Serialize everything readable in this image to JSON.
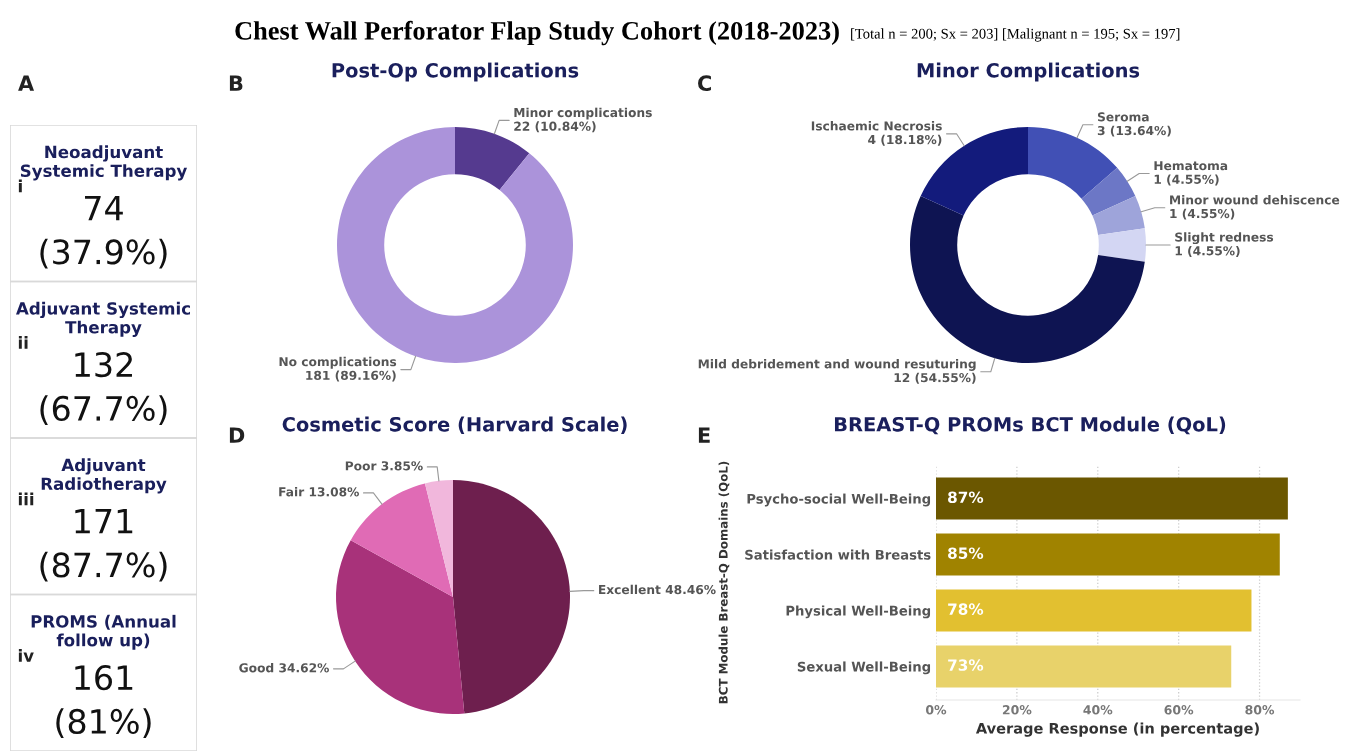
{
  "chart_data": [
    {
      "type": "other",
      "title": "Chest Wall Perforator Flap Study Cohort (2018-2023)",
      "subtitle": "[Total n = 200; Sx = 203] [Malignant n = 195; Sx = 197]",
      "annotations": [
        "A",
        "Neoadjuvant Systemic Therapy",
        "i",
        "74",
        "(37.9%)",
        "Adjuvant Systemic Therapy",
        "ii",
        "132",
        "(67.7%)",
        "Adjuvant Radiotherapy",
        "iii",
        "171",
        "(87.7%)",
        "PROMS (Annual follow up)",
        "iv",
        "161",
        "(81%)"
      ]
    },
    {
      "type": "donut",
      "title": "Post-Op Complications",
      "annotations": [
        "B"
      ],
      "categories": [
        "Minor complications",
        "No complications"
      ],
      "values": [
        22,
        181
      ],
      "value_labels": [
        "22 (10.84%)",
        "181 (89.16%)"
      ],
      "colors": [
        "#553a8f",
        "#ab93da"
      ]
    },
    {
      "type": "donut",
      "title": "Minor Complications",
      "annotations": [
        "C"
      ],
      "categories": [
        "Seroma",
        "Hematoma",
        "Minor wound dehiscence",
        "Slight redness",
        "Mild debridement and wound resuturing",
        "Ischaemic Necrosis"
      ],
      "values": [
        3,
        1,
        1,
        1,
        12,
        4
      ],
      "value_labels": [
        "3 (13.64%)",
        "1 (4.55%)",
        "1 (4.55%)",
        "1 (4.55%)",
        "12 (54.55%)",
        "4 (18.18%)"
      ],
      "colors": [
        "#4150b5",
        "#6c77c6",
        "#9ea4da",
        "#d3d6f3",
        "#0e1452",
        "#131b7c"
      ]
    },
    {
      "type": "pie",
      "title": "Cosmetic Score (Harvard Scale)",
      "annotations": [
        "D"
      ],
      "categories": [
        "Excellent",
        "Good",
        "Fair",
        "Poor"
      ],
      "values": [
        48.46,
        34.62,
        13.08,
        3.85
      ],
      "value_labels": [
        "48.46%",
        "34.62%",
        "13.08%",
        "3.85%"
      ],
      "colors": [
        "#6e1f4e",
        "#a8327a",
        "#e06bb5",
        "#f1b7dc"
      ]
    },
    {
      "type": "bar",
      "orientation": "horizontal",
      "title": "BREAST-Q PROMs BCT Module (QoL)",
      "annotations": [
        "E"
      ],
      "xlabel": "Average Response (in percentage)",
      "ylabel": "BCT Module Breast-Q Domains (QoL)",
      "categories": [
        "Psycho-social Well-Being",
        "Satisfaction with Breasts",
        "Physical Well-Being",
        "Sexual Well-Being"
      ],
      "values": [
        87,
        85,
        78,
        73
      ],
      "value_labels": [
        "87%",
        "85%",
        "78%",
        "73%"
      ],
      "colors": [
        "#6b5700",
        "#a08300",
        "#e2c030",
        "#e8d26a"
      ],
      "xlim": [
        0,
        90
      ],
      "xticks": [
        {
          "value": 0,
          "label": "0%"
        },
        {
          "value": 20,
          "label": "20%"
        },
        {
          "value": 40,
          "label": "40%"
        },
        {
          "value": 60,
          "label": "60%"
        },
        {
          "value": 80,
          "label": "80%"
        }
      ],
      "grid": "x"
    }
  ]
}
